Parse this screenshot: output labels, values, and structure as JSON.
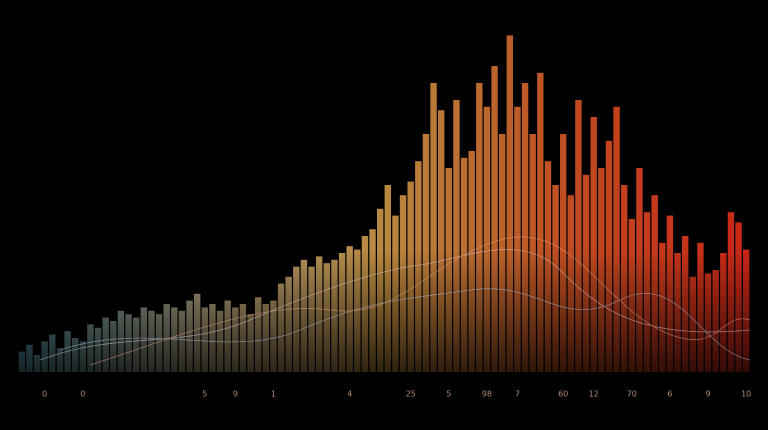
{
  "chart_data": {
    "type": "bar",
    "categories": [
      null,
      null,
      null,
      "0",
      null,
      null,
      null,
      null,
      "0",
      null,
      null,
      null,
      null,
      null,
      null,
      null,
      null,
      null,
      null,
      null,
      null,
      null,
      null,
      null,
      "5",
      null,
      null,
      null,
      "9",
      null,
      null,
      null,
      null,
      "1",
      null,
      null,
      null,
      null,
      null,
      null,
      null,
      null,
      null,
      "4",
      null,
      null,
      null,
      null,
      null,
      null,
      null,
      "25",
      null,
      null,
      null,
      null,
      "5",
      null,
      null,
      null,
      null,
      "98",
      null,
      null,
      null,
      "7",
      null,
      null,
      null,
      null,
      null,
      "60",
      null,
      null,
      null,
      "12",
      null,
      null,
      null,
      null,
      "70",
      null,
      null,
      null,
      null,
      "6",
      null,
      null,
      null,
      null,
      "9",
      null,
      null,
      null,
      null,
      "10"
    ],
    "values": [
      6,
      8,
      5,
      9,
      11,
      7,
      12,
      10,
      9,
      14,
      13,
      16,
      15,
      18,
      17,
      16,
      19,
      18,
      17,
      20,
      19,
      18,
      21,
      23,
      19,
      20,
      18,
      21,
      19,
      20,
      17,
      22,
      20,
      21,
      26,
      28,
      31,
      33,
      31,
      34,
      32,
      33,
      35,
      37,
      36,
      40,
      42,
      48,
      55,
      46,
      52,
      56,
      62,
      70,
      85,
      77,
      60,
      80,
      63,
      65,
      85,
      78,
      90,
      70,
      99,
      78,
      85,
      70,
      88,
      62,
      55,
      70,
      52,
      80,
      58,
      75,
      60,
      68,
      78,
      55,
      45,
      60,
      47,
      52,
      38,
      46,
      35,
      40,
      28,
      38,
      29,
      30,
      35,
      47,
      44,
      36
    ],
    "ylim": [
      0,
      100
    ],
    "colors": [
      "#5aa6b8",
      "#c9b68e",
      "#d9a04a",
      "#e05a26",
      "#ee2c1a"
    ]
  }
}
